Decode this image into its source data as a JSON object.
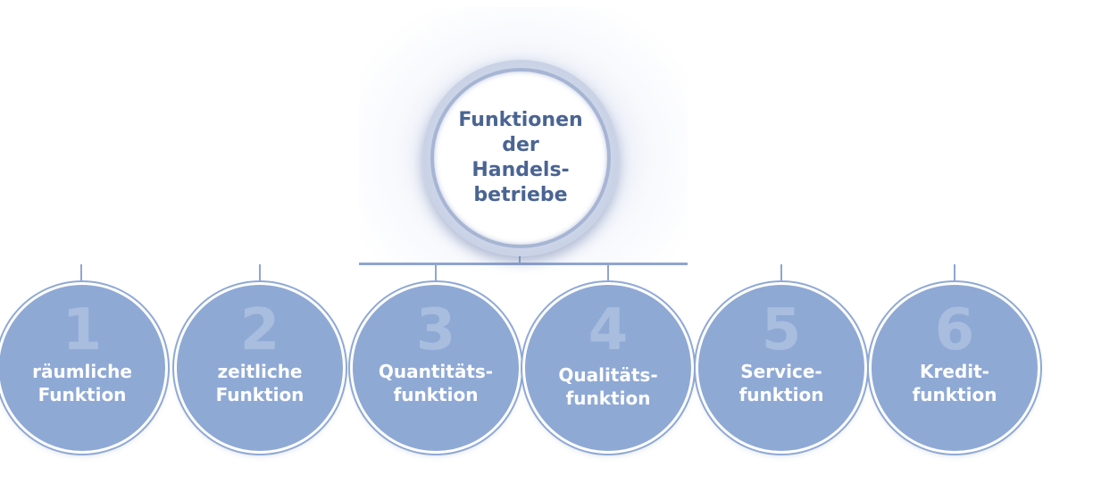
{
  "root": {
    "title": "Funktionen\nder\nHandels-\nbetriebe"
  },
  "functions": [
    {
      "number": "1",
      "label": "räumliche\nFunktion"
    },
    {
      "number": "2",
      "label": "zeitliche\nFunktion"
    },
    {
      "number": "3",
      "label": "Quantitäts-\nfunktion"
    },
    {
      "number": "4",
      "label": "Qualitäts-\nfunktion"
    },
    {
      "number": "5",
      "label": "Service-\nfunktion"
    },
    {
      "number": "6",
      "label": "Kredit-\nfunktion"
    }
  ],
  "colors": {
    "node_fill": "#8fa9d5",
    "title_text": "#4a6493",
    "connector": "#8fa5cf"
  }
}
